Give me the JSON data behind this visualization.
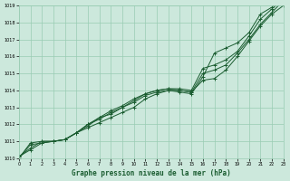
{
  "xlabel": "Graphe pression niveau de la mer (hPa)",
  "xlim": [
    0,
    23
  ],
  "ylim": [
    1010,
    1019
  ],
  "xticks": [
    0,
    1,
    2,
    3,
    4,
    5,
    6,
    7,
    8,
    9,
    10,
    11,
    12,
    13,
    14,
    15,
    16,
    17,
    18,
    19,
    20,
    21,
    22,
    23
  ],
  "yticks": [
    1010,
    1011,
    1012,
    1013,
    1014,
    1015,
    1016,
    1017,
    1018,
    1019
  ],
  "background_color": "#cce8dc",
  "grid_color": "#99ccb3",
  "line_color": "#1a5c30",
  "series": [
    [
      1010.1,
      1010.5,
      1010.9,
      1011.0,
      1011.1,
      1011.5,
      1011.8,
      1012.1,
      1012.4,
      1012.7,
      1013.0,
      1013.5,
      1013.8,
      1014.0,
      1014.0,
      1013.9,
      1014.6,
      1014.7,
      1015.2,
      1016.0,
      1016.9,
      1017.8,
      1018.5,
      1019.0
    ],
    [
      1010.1,
      1010.6,
      1011.0,
      1011.0,
      1011.1,
      1011.5,
      1012.0,
      1012.3,
      1012.7,
      1013.0,
      1013.4,
      1013.8,
      1014.0,
      1014.1,
      1014.0,
      1013.9,
      1015.0,
      1015.2,
      1015.5,
      1016.2,
      1017.0,
      1017.9,
      1018.6,
      1019.3
    ],
    [
      1010.0,
      1010.8,
      1010.9,
      1011.0,
      1011.1,
      1011.5,
      1012.0,
      1012.4,
      1012.8,
      1013.1,
      1013.5,
      1013.8,
      1014.0,
      1014.1,
      1014.1,
      1014.0,
      1015.3,
      1015.5,
      1015.8,
      1016.3,
      1017.2,
      1018.2,
      1018.8,
      1019.4
    ],
    [
      1010.0,
      1010.9,
      1011.0,
      1011.0,
      1011.1,
      1011.5,
      1011.9,
      1012.4,
      1012.6,
      1013.0,
      1013.3,
      1013.7,
      1013.9,
      1014.0,
      1013.9,
      1013.8,
      1014.8,
      1016.2,
      1016.5,
      1016.8,
      1017.4,
      1018.5,
      1018.9,
      1019.6
    ]
  ]
}
